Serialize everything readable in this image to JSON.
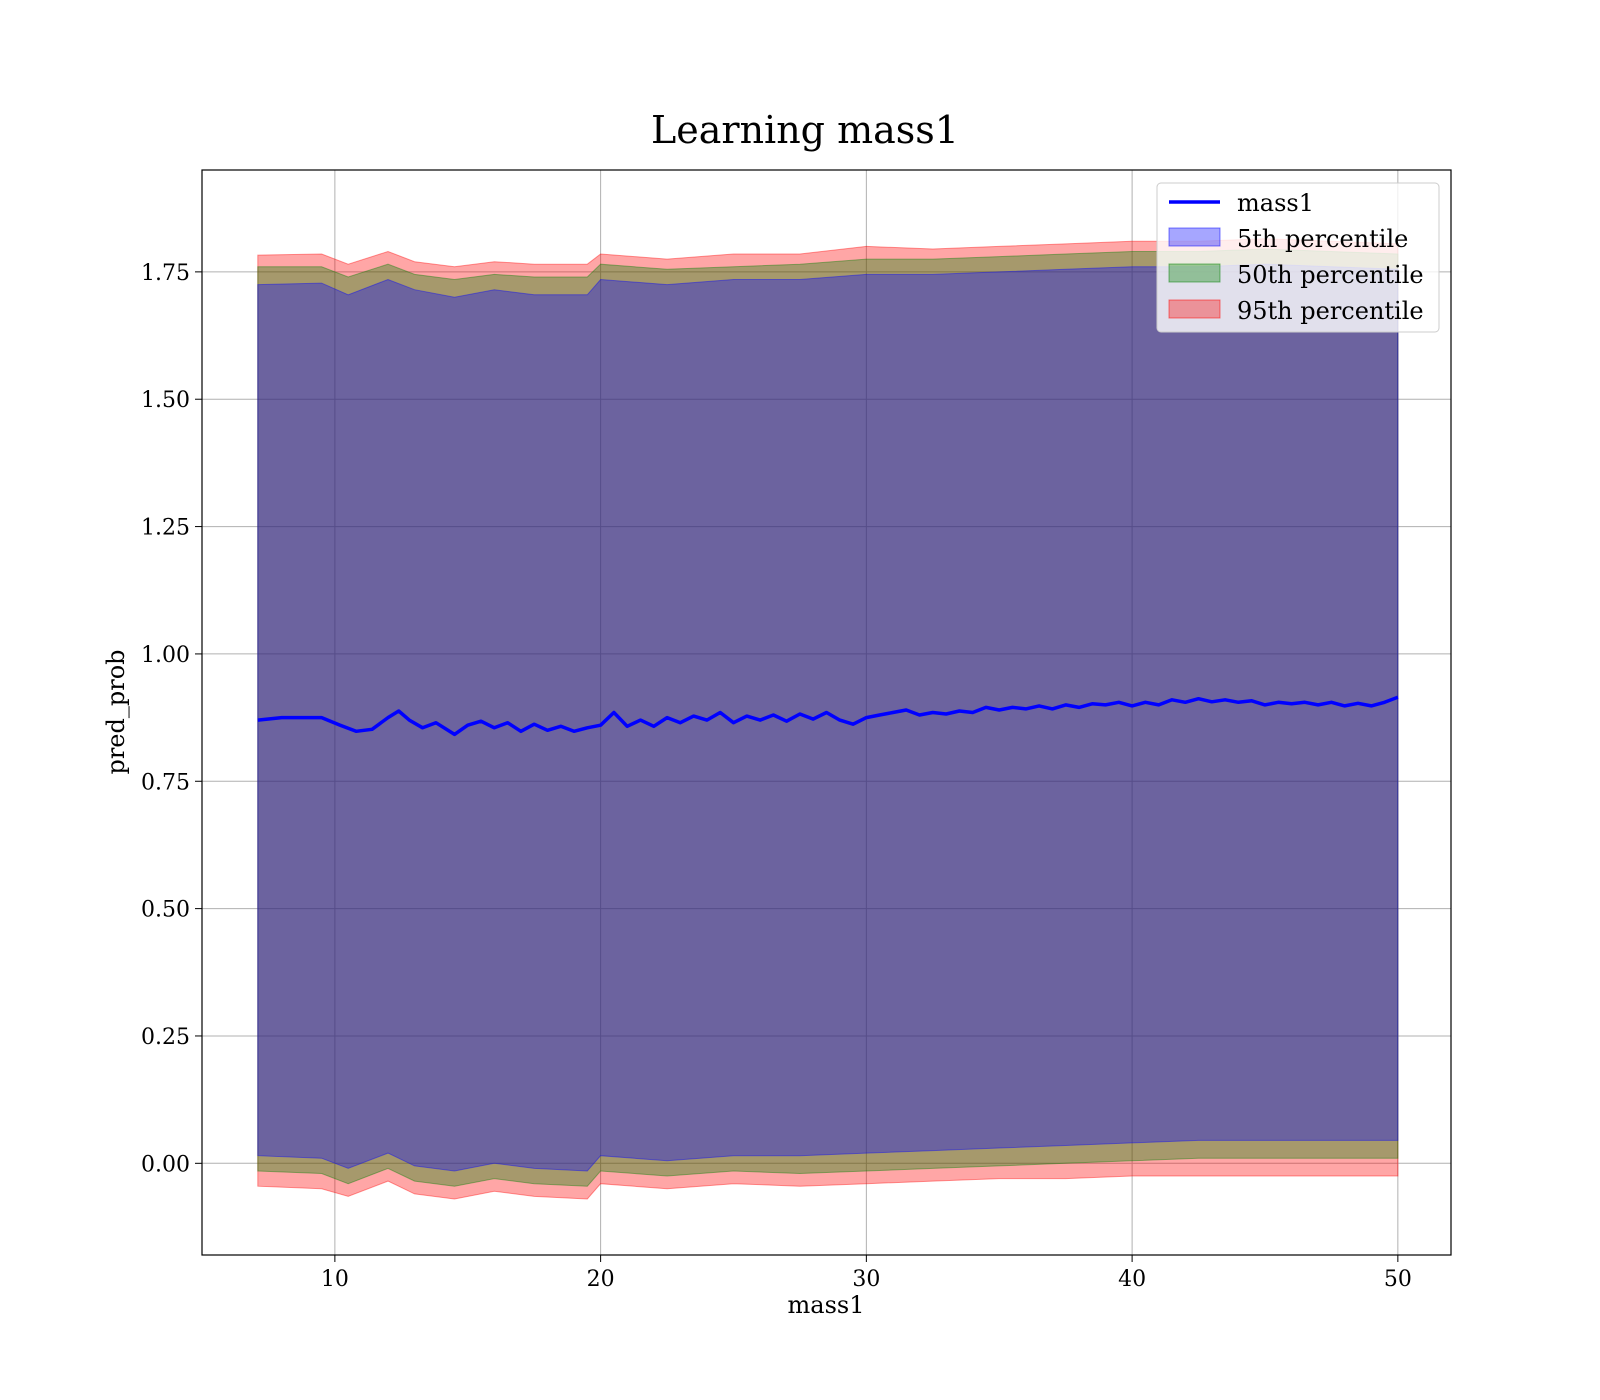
{
  "chart_data": {
    "type": "area",
    "title": "Learning mass1",
    "xlabel": "mass1",
    "ylabel": "pred_prob",
    "xlim": [
      5,
      52
    ],
    "ylim": [
      -0.18,
      1.95
    ],
    "x_ticks": [
      10,
      20,
      30,
      40,
      50
    ],
    "x_tick_labels": [
      "10",
      "20",
      "30",
      "40",
      "50"
    ],
    "y_ticks": [
      0,
      0.25,
      0.5,
      0.75,
      1.0,
      1.25,
      1.5,
      1.75
    ],
    "y_tick_labels": [
      "0.00",
      "0.25",
      "0.50",
      "0.75",
      "1.00",
      "1.25",
      "1.50",
      "1.75"
    ],
    "grid": true,
    "legend_position": "top-right",
    "legend": [
      "mass1",
      "5th percentile",
      "50th percentile",
      "95th percentile"
    ],
    "line": {
      "name": "mass1",
      "color": "#0000ff",
      "x": [
        7.1,
        8,
        9,
        9.5,
        10.2,
        10.8,
        11.4,
        12,
        12.4,
        12.8,
        13.3,
        13.8,
        14.5,
        15,
        15.5,
        16,
        16.5,
        17,
        17.5,
        18,
        18.5,
        19,
        19.5,
        20,
        20.5,
        21,
        21.5,
        22,
        22.5,
        23,
        23.5,
        24,
        24.5,
        25,
        25.5,
        26,
        26.5,
        27,
        27.5,
        28,
        28.5,
        29,
        29.5,
        30,
        30.5,
        31,
        31.5,
        32,
        32.5,
        33,
        33.5,
        34,
        34.5,
        35,
        35.5,
        36,
        36.5,
        37,
        37.5,
        38,
        38.5,
        39,
        39.5,
        40,
        40.5,
        41,
        41.5,
        42,
        42.5,
        43,
        43.5,
        44,
        44.5,
        45,
        45.5,
        46,
        46.5,
        47,
        47.5,
        48,
        48.5,
        49,
        49.5,
        50
      ],
      "y": [
        0.87,
        0.875,
        0.875,
        0.875,
        0.86,
        0.848,
        0.852,
        0.875,
        0.888,
        0.87,
        0.855,
        0.865,
        0.842,
        0.86,
        0.868,
        0.855,
        0.865,
        0.848,
        0.862,
        0.85,
        0.858,
        0.848,
        0.855,
        0.86,
        0.885,
        0.858,
        0.87,
        0.858,
        0.875,
        0.865,
        0.878,
        0.87,
        0.885,
        0.865,
        0.878,
        0.87,
        0.88,
        0.868,
        0.882,
        0.872,
        0.885,
        0.87,
        0.862,
        0.875,
        0.88,
        0.885,
        0.89,
        0.88,
        0.885,
        0.882,
        0.888,
        0.885,
        0.895,
        0.89,
        0.895,
        0.892,
        0.898,
        0.892,
        0.9,
        0.895,
        0.902,
        0.9,
        0.905,
        0.898,
        0.905,
        0.9,
        0.91,
        0.905,
        0.912,
        0.906,
        0.91,
        0.905,
        0.908,
        0.9,
        0.905,
        0.902,
        0.905,
        0.9,
        0.905,
        0.898,
        0.903,
        0.898,
        0.905,
        0.915
      ]
    },
    "bands": [
      {
        "name": "95th percentile",
        "color": "#ff0000",
        "x": [
          7.1,
          9.5,
          10.5,
          12,
          13,
          14.5,
          16,
          17.5,
          19.5,
          20,
          22.5,
          25,
          27.5,
          30,
          32.5,
          35,
          37.5,
          40,
          42.5,
          45,
          47.5,
          50
        ],
        "upper": [
          1.783,
          1.785,
          1.765,
          1.79,
          1.77,
          1.76,
          1.77,
          1.765,
          1.765,
          1.785,
          1.775,
          1.785,
          1.785,
          1.8,
          1.795,
          1.8,
          1.805,
          1.81,
          1.81,
          1.815,
          1.81,
          1.805
        ],
        "lower": [
          -0.045,
          -0.05,
          -0.065,
          -0.035,
          -0.06,
          -0.07,
          -0.055,
          -0.065,
          -0.07,
          -0.04,
          -0.05,
          -0.04,
          -0.045,
          -0.04,
          -0.035,
          -0.03,
          -0.03,
          -0.025,
          -0.025,
          -0.025,
          -0.025,
          -0.025
        ]
      },
      {
        "name": "50th percentile",
        "color": "#008000",
        "x": [
          7.1,
          9.5,
          10.5,
          12,
          13,
          14.5,
          16,
          17.5,
          19.5,
          20,
          22.5,
          25,
          27.5,
          30,
          32.5,
          35,
          37.5,
          40,
          42.5,
          45,
          47.5,
          50
        ],
        "upper": [
          1.76,
          1.76,
          1.74,
          1.765,
          1.745,
          1.735,
          1.745,
          1.74,
          1.74,
          1.765,
          1.755,
          1.76,
          1.765,
          1.775,
          1.775,
          1.78,
          1.785,
          1.79,
          1.79,
          1.795,
          1.79,
          1.785
        ],
        "lower": [
          -0.015,
          -0.02,
          -0.04,
          -0.01,
          -0.035,
          -0.045,
          -0.03,
          -0.04,
          -0.045,
          -0.015,
          -0.025,
          -0.015,
          -0.02,
          -0.015,
          -0.01,
          -0.005,
          0.0,
          0.005,
          0.01,
          0.01,
          0.01,
          0.01
        ]
      },
      {
        "name": "5th percentile",
        "color": "#0000ff",
        "x": [
          7.1,
          9.5,
          10.5,
          12,
          13,
          14.5,
          16,
          17.5,
          19.5,
          20,
          22.5,
          25,
          27.5,
          30,
          32.5,
          35,
          37.5,
          40,
          42.5,
          45,
          47.5,
          50
        ],
        "upper": [
          1.725,
          1.728,
          1.705,
          1.735,
          1.715,
          1.7,
          1.715,
          1.705,
          1.705,
          1.735,
          1.725,
          1.735,
          1.735,
          1.745,
          1.745,
          1.75,
          1.755,
          1.76,
          1.76,
          1.765,
          1.76,
          1.755
        ],
        "lower": [
          0.015,
          0.01,
          -0.01,
          0.02,
          -0.005,
          -0.015,
          0.0,
          -0.01,
          -0.015,
          0.015,
          0.005,
          0.015,
          0.015,
          0.02,
          0.025,
          0.03,
          0.035,
          0.04,
          0.045,
          0.045,
          0.045,
          0.045
        ]
      }
    ]
  }
}
